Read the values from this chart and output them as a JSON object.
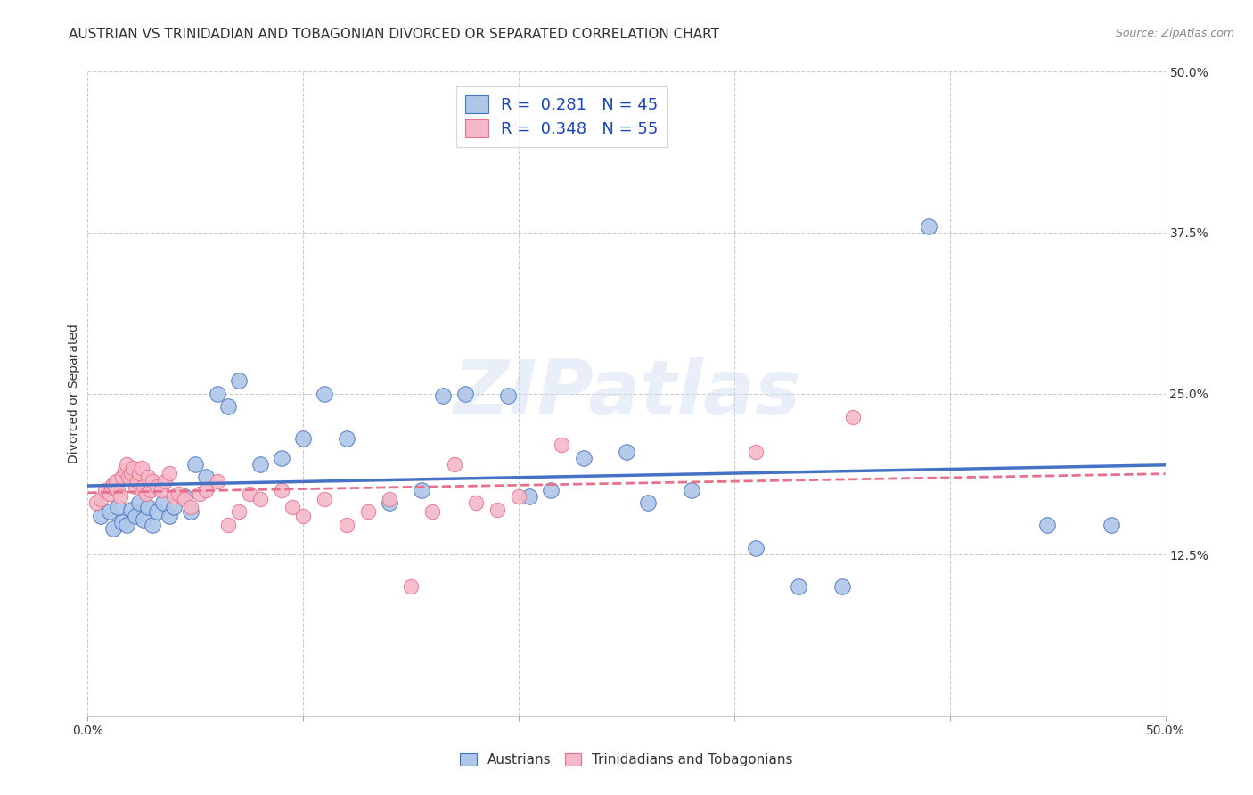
{
  "title": "AUSTRIAN VS TRINIDADIAN AND TOBAGONIAN DIVORCED OR SEPARATED CORRELATION CHART",
  "source": "Source: ZipAtlas.com",
  "ylabel": "Divorced or Separated",
  "xlim": [
    0.0,
    0.5
  ],
  "ylim": [
    0.0,
    0.5
  ],
  "legend_entries": [
    {
      "label": "R =  0.281   N = 45",
      "color": "#aec6e8",
      "edge": "#4472c4"
    },
    {
      "label": "R =  0.348   N = 55",
      "color": "#f4b8c8",
      "edge": "#e8708a"
    }
  ],
  "trend_colors": [
    "#4472c4",
    "#e8708a"
  ],
  "trend_styles": [
    "-",
    "--"
  ],
  "bottom_legend": [
    {
      "label": "Austrians",
      "color": "#aec6e8",
      "edge": "#4472c4"
    },
    {
      "label": "Trinidadians and Tobagonians",
      "color": "#f4b8c8",
      "edge": "#e8708a"
    }
  ],
  "watermark": "ZIPatlas",
  "background_color": "#ffffff",
  "grid_color": "#cccccc",
  "title_fontsize": 11,
  "axis_fontsize": 10,
  "tick_fontsize": 10,
  "right_ytick_labels": [
    "12.5%",
    "25.0%",
    "37.5%",
    "50.0%"
  ],
  "right_ytick_vals": [
    0.125,
    0.25,
    0.375,
    0.5
  ],
  "austrians_x": [
    0.006,
    0.01,
    0.012,
    0.014,
    0.016,
    0.018,
    0.02,
    0.022,
    0.024,
    0.026,
    0.028,
    0.03,
    0.032,
    0.035,
    0.038,
    0.04,
    0.045,
    0.048,
    0.05,
    0.055,
    0.06,
    0.065,
    0.07,
    0.08,
    0.09,
    0.1,
    0.11,
    0.12,
    0.14,
    0.155,
    0.165,
    0.175,
    0.195,
    0.205,
    0.215,
    0.23,
    0.25,
    0.26,
    0.28,
    0.31,
    0.33,
    0.35,
    0.39,
    0.445,
    0.475
  ],
  "austrians_y": [
    0.155,
    0.158,
    0.145,
    0.162,
    0.15,
    0.148,
    0.16,
    0.155,
    0.165,
    0.152,
    0.162,
    0.148,
    0.158,
    0.165,
    0.155,
    0.162,
    0.17,
    0.158,
    0.195,
    0.185,
    0.25,
    0.24,
    0.26,
    0.195,
    0.2,
    0.215,
    0.25,
    0.215,
    0.165,
    0.175,
    0.248,
    0.25,
    0.248,
    0.17,
    0.175,
    0.2,
    0.205,
    0.165,
    0.175,
    0.13,
    0.1,
    0.1,
    0.38,
    0.148,
    0.148
  ],
  "trinidadians_x": [
    0.004,
    0.006,
    0.008,
    0.01,
    0.011,
    0.012,
    0.013,
    0.014,
    0.015,
    0.016,
    0.017,
    0.018,
    0.019,
    0.02,
    0.021,
    0.022,
    0.023,
    0.024,
    0.025,
    0.026,
    0.027,
    0.028,
    0.029,
    0.03,
    0.032,
    0.034,
    0.036,
    0.038,
    0.04,
    0.042,
    0.045,
    0.048,
    0.052,
    0.055,
    0.06,
    0.065,
    0.07,
    0.075,
    0.08,
    0.09,
    0.095,
    0.1,
    0.11,
    0.12,
    0.13,
    0.14,
    0.15,
    0.16,
    0.17,
    0.18,
    0.19,
    0.2,
    0.22,
    0.31,
    0.355
  ],
  "trinidadians_y": [
    0.165,
    0.168,
    0.175,
    0.172,
    0.178,
    0.18,
    0.182,
    0.175,
    0.17,
    0.185,
    0.19,
    0.195,
    0.185,
    0.188,
    0.192,
    0.178,
    0.182,
    0.188,
    0.192,
    0.178,
    0.172,
    0.185,
    0.175,
    0.182,
    0.178,
    0.175,
    0.182,
    0.188,
    0.17,
    0.172,
    0.168,
    0.162,
    0.172,
    0.175,
    0.182,
    0.148,
    0.158,
    0.172,
    0.168,
    0.175,
    0.162,
    0.155,
    0.168,
    0.148,
    0.158,
    0.168,
    0.1,
    0.158,
    0.195,
    0.165,
    0.16,
    0.17,
    0.21,
    0.205,
    0.232
  ]
}
